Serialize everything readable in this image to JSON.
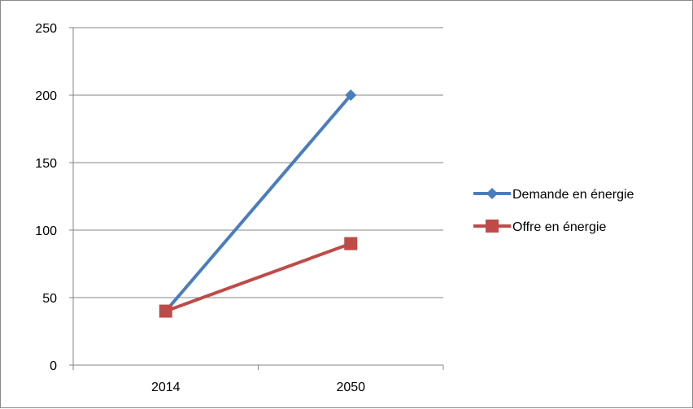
{
  "chart_data": {
    "type": "line",
    "categories": [
      "2014",
      "2050"
    ],
    "series": [
      {
        "name": "Demande en énergie",
        "values": [
          40,
          200
        ],
        "color": "#4a7ebb",
        "marker": "diamond"
      },
      {
        "name": "Offre en énergie",
        "values": [
          40,
          90
        ],
        "color": "#be4b48",
        "marker": "square"
      }
    ],
    "ylim": [
      0,
      250
    ],
    "yticks": [
      "0",
      "50",
      "100",
      "150",
      "200",
      "250"
    ],
    "title": "",
    "xlabel": "",
    "ylabel": "",
    "grid": true,
    "legend_position": "right"
  }
}
